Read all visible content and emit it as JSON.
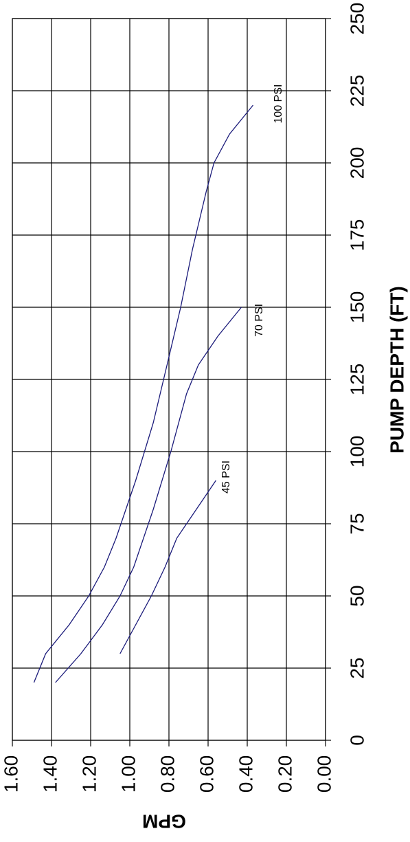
{
  "chart_data": {
    "type": "line",
    "x_axis": {
      "label": "PUMP DEPTH (FT)",
      "range": [
        0,
        250
      ],
      "ticks": [
        "0",
        "25",
        "50",
        "75",
        "100",
        "125",
        "150",
        "175",
        "200",
        "225",
        "250"
      ]
    },
    "y_axis": {
      "label": "GPM",
      "range": [
        0,
        1.6
      ],
      "ticks": [
        "0.00",
        "0.20",
        "0.40",
        "0.60",
        "0.80",
        "1.00",
        "1.20",
        "1.40",
        "1.60"
      ]
    },
    "grid": true,
    "line_color": "#1a1a7a",
    "series": [
      {
        "name": "45 PSI",
        "points": [
          [
            30,
            1.05
          ],
          [
            40,
            0.97
          ],
          [
            50,
            0.89
          ],
          [
            60,
            0.82
          ],
          [
            70,
            0.76
          ],
          [
            80,
            0.66
          ],
          [
            90,
            0.56
          ]
        ]
      },
      {
        "name": "70 PSI",
        "points": [
          [
            20,
            1.38
          ],
          [
            30,
            1.25
          ],
          [
            40,
            1.14
          ],
          [
            50,
            1.05
          ],
          [
            60,
            0.98
          ],
          [
            80,
            0.88
          ],
          [
            100,
            0.79
          ],
          [
            120,
            0.71
          ],
          [
            130,
            0.65
          ],
          [
            140,
            0.55
          ],
          [
            150,
            0.43
          ]
        ]
      },
      {
        "name": "100 PSI",
        "points": [
          [
            20,
            1.49
          ],
          [
            30,
            1.43
          ],
          [
            40,
            1.31
          ],
          [
            50,
            1.21
          ],
          [
            60,
            1.13
          ],
          [
            70,
            1.07
          ],
          [
            80,
            1.02
          ],
          [
            90,
            0.97
          ],
          [
            110,
            0.88
          ],
          [
            130,
            0.81
          ],
          [
            150,
            0.74
          ],
          [
            170,
            0.68
          ],
          [
            190,
            0.61
          ],
          [
            200,
            0.57
          ],
          [
            210,
            0.49
          ],
          [
            220,
            0.37
          ]
        ]
      }
    ]
  }
}
